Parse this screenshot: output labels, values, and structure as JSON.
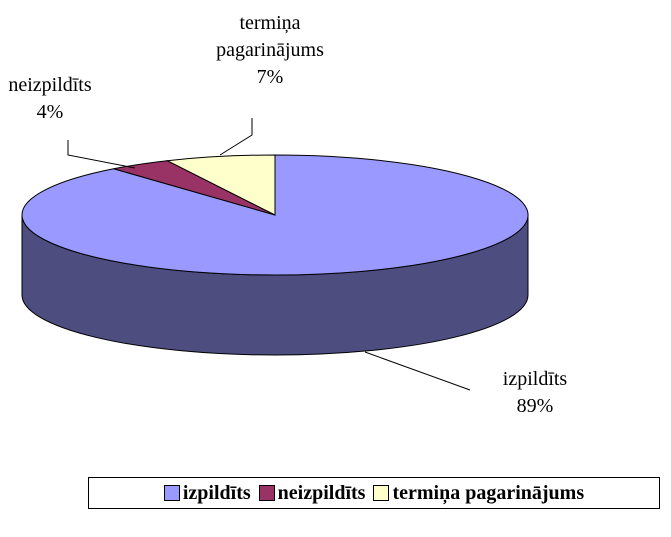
{
  "chart_data": {
    "type": "pie",
    "categories": [
      "izpildīts",
      "neizpildīts",
      "termiņa pagarinājums"
    ],
    "values": [
      89,
      4,
      7
    ],
    "value_labels": [
      "89%",
      "4%",
      "7%"
    ],
    "colors": [
      "#9999ff",
      "#993366",
      "#ffffcc"
    ],
    "legend": "bottom"
  }
}
